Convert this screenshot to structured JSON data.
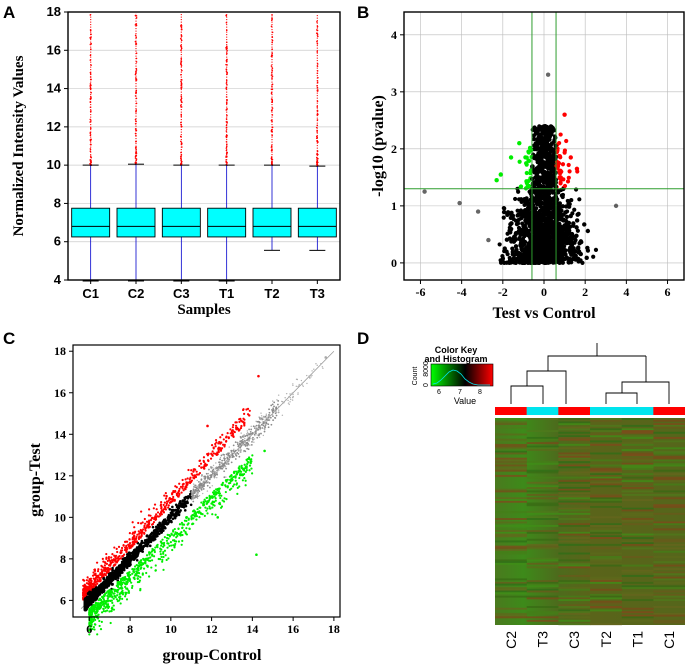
{
  "panels": {
    "a": {
      "letter": "A"
    },
    "b": {
      "letter": "B"
    },
    "c": {
      "letter": "C"
    },
    "d": {
      "letter": "D"
    }
  },
  "chart_data": [
    {
      "id": "A",
      "type": "box",
      "xlabel": "Samples",
      "ylabel": "Normalized Intensity Values",
      "ylim": [
        4,
        18
      ],
      "yticks": [
        4,
        6,
        8,
        10,
        12,
        14,
        16,
        18
      ],
      "categories": [
        "C1",
        "C2",
        "C3",
        "T1",
        "T2",
        "T3"
      ],
      "boxes": [
        {
          "name": "C1",
          "lower_whisker": 3.95,
          "q1": 6.25,
          "median": 6.8,
          "q3": 7.75,
          "upper_whisker": 10.0,
          "outlier_max": 17.9
        },
        {
          "name": "C2",
          "lower_whisker": 3.95,
          "q1": 6.25,
          "median": 6.8,
          "q3": 7.75,
          "upper_whisker": 10.05,
          "outlier_max": 17.9
        },
        {
          "name": "C3",
          "lower_whisker": 3.95,
          "q1": 6.25,
          "median": 6.8,
          "q3": 7.75,
          "upper_whisker": 10.0,
          "outlier_max": 17.9
        },
        {
          "name": "T1",
          "lower_whisker": 3.95,
          "q1": 6.25,
          "median": 6.8,
          "q3": 7.75,
          "upper_whisker": 10.0,
          "outlier_max": 17.9
        },
        {
          "name": "T2",
          "lower_whisker": 5.55,
          "q1": 6.25,
          "median": 6.8,
          "q3": 7.75,
          "upper_whisker": 10.0,
          "outlier_max": 17.9
        },
        {
          "name": "T3",
          "lower_whisker": 5.55,
          "q1": 6.25,
          "median": 6.8,
          "q3": 7.75,
          "upper_whisker": 9.95,
          "outlier_max": 17.9
        }
      ],
      "colors": {
        "box": "#00ffff",
        "whisker": "#0000cc",
        "outlier": "#ff0000",
        "grid": "#cccccc"
      },
      "grid": true
    },
    {
      "id": "B",
      "type": "scatter",
      "subtype": "volcano",
      "xlabel": "Test vs Control",
      "ylabel": "-log10 (pvalue)",
      "xlim": [
        -6.8,
        6.8
      ],
      "ylim": [
        -0.3,
        4.4
      ],
      "xticks": [
        -6,
        -4,
        -2,
        0,
        2,
        4,
        6
      ],
      "yticks": [
        0,
        1,
        2,
        3,
        4
      ],
      "thresholds": {
        "fold_change_log2": [
          -0.585,
          0.585
        ],
        "pvalue_log10": 1.3
      },
      "highlight_points": [
        {
          "x": -5.8,
          "y": 1.25,
          "group": "ns"
        },
        {
          "x": -4.1,
          "y": 1.05,
          "group": "ns"
        },
        {
          "x": -3.2,
          "y": 0.9,
          "group": "ns"
        },
        {
          "x": -2.7,
          "y": 0.4,
          "group": "ns"
        },
        {
          "x": 3.5,
          "y": 1.0,
          "group": "ns"
        },
        {
          "x": -2.3,
          "y": 1.45,
          "group": "down"
        },
        {
          "x": -2.1,
          "y": 1.55,
          "group": "down"
        },
        {
          "x": -1.6,
          "y": 1.85,
          "group": "down"
        },
        {
          "x": -1.2,
          "y": 2.1,
          "group": "down"
        },
        {
          "x": 1.6,
          "y": 1.65,
          "group": "up"
        },
        {
          "x": 1.3,
          "y": 1.85,
          "group": "up"
        },
        {
          "x": 1.0,
          "y": 2.6,
          "group": "up"
        },
        {
          "x": 0.2,
          "y": 3.3,
          "group": "ns"
        }
      ],
      "colors": {
        "up": "#ff0000",
        "down": "#00ee00",
        "ns": "#000000",
        "threshold": "#2e9e2e",
        "grid": "#bbbbbb"
      },
      "grid": true
    },
    {
      "id": "C",
      "type": "scatter",
      "xlabel": "group-Control",
      "ylabel": "group-Test",
      "xlim": [
        5.2,
        18.3
      ],
      "ylim": [
        5.2,
        18.3
      ],
      "xticks": [
        6,
        8,
        10,
        12,
        14,
        16,
        18
      ],
      "yticks": [
        6,
        8,
        10,
        12,
        14,
        16,
        18
      ],
      "highlight_points": [
        {
          "x": 14.3,
          "y": 16.8,
          "group": "up"
        },
        {
          "x": 11.8,
          "y": 14.4,
          "group": "up"
        },
        {
          "x": 14.6,
          "y": 13.2,
          "group": "down"
        },
        {
          "x": 14.2,
          "y": 8.2,
          "group": "down"
        },
        {
          "x": 12.3,
          "y": 10.0,
          "group": "down"
        },
        {
          "x": 17.6,
          "y": 17.7,
          "group": "ns"
        }
      ],
      "colors": {
        "up": "#ff0000",
        "down": "#00ee00",
        "ns": "#000000",
        "diagonal": "#999999"
      },
      "grid": false
    },
    {
      "id": "D",
      "type": "heatmap",
      "columns": [
        "C2",
        "T3",
        "C3",
        "T2",
        "T1",
        "C1"
      ],
      "column_groups": [
        "control",
        "test",
        "control",
        "test",
        "test",
        "control"
      ],
      "group_colors": {
        "control": "#ff0000",
        "test": "#00e5ee"
      },
      "color_key": {
        "title_line1": "Color Key",
        "title_line2": "and Histogram",
        "y_axis_label": "Count",
        "y_ticks": [
          "0",
          "8000"
        ],
        "x_ticks": [
          "6",
          "7",
          "8"
        ],
        "value_label": "Value",
        "low_color": "#00ff00",
        "mid_color": "#000000",
        "high_color": "#ff0000"
      }
    }
  ]
}
